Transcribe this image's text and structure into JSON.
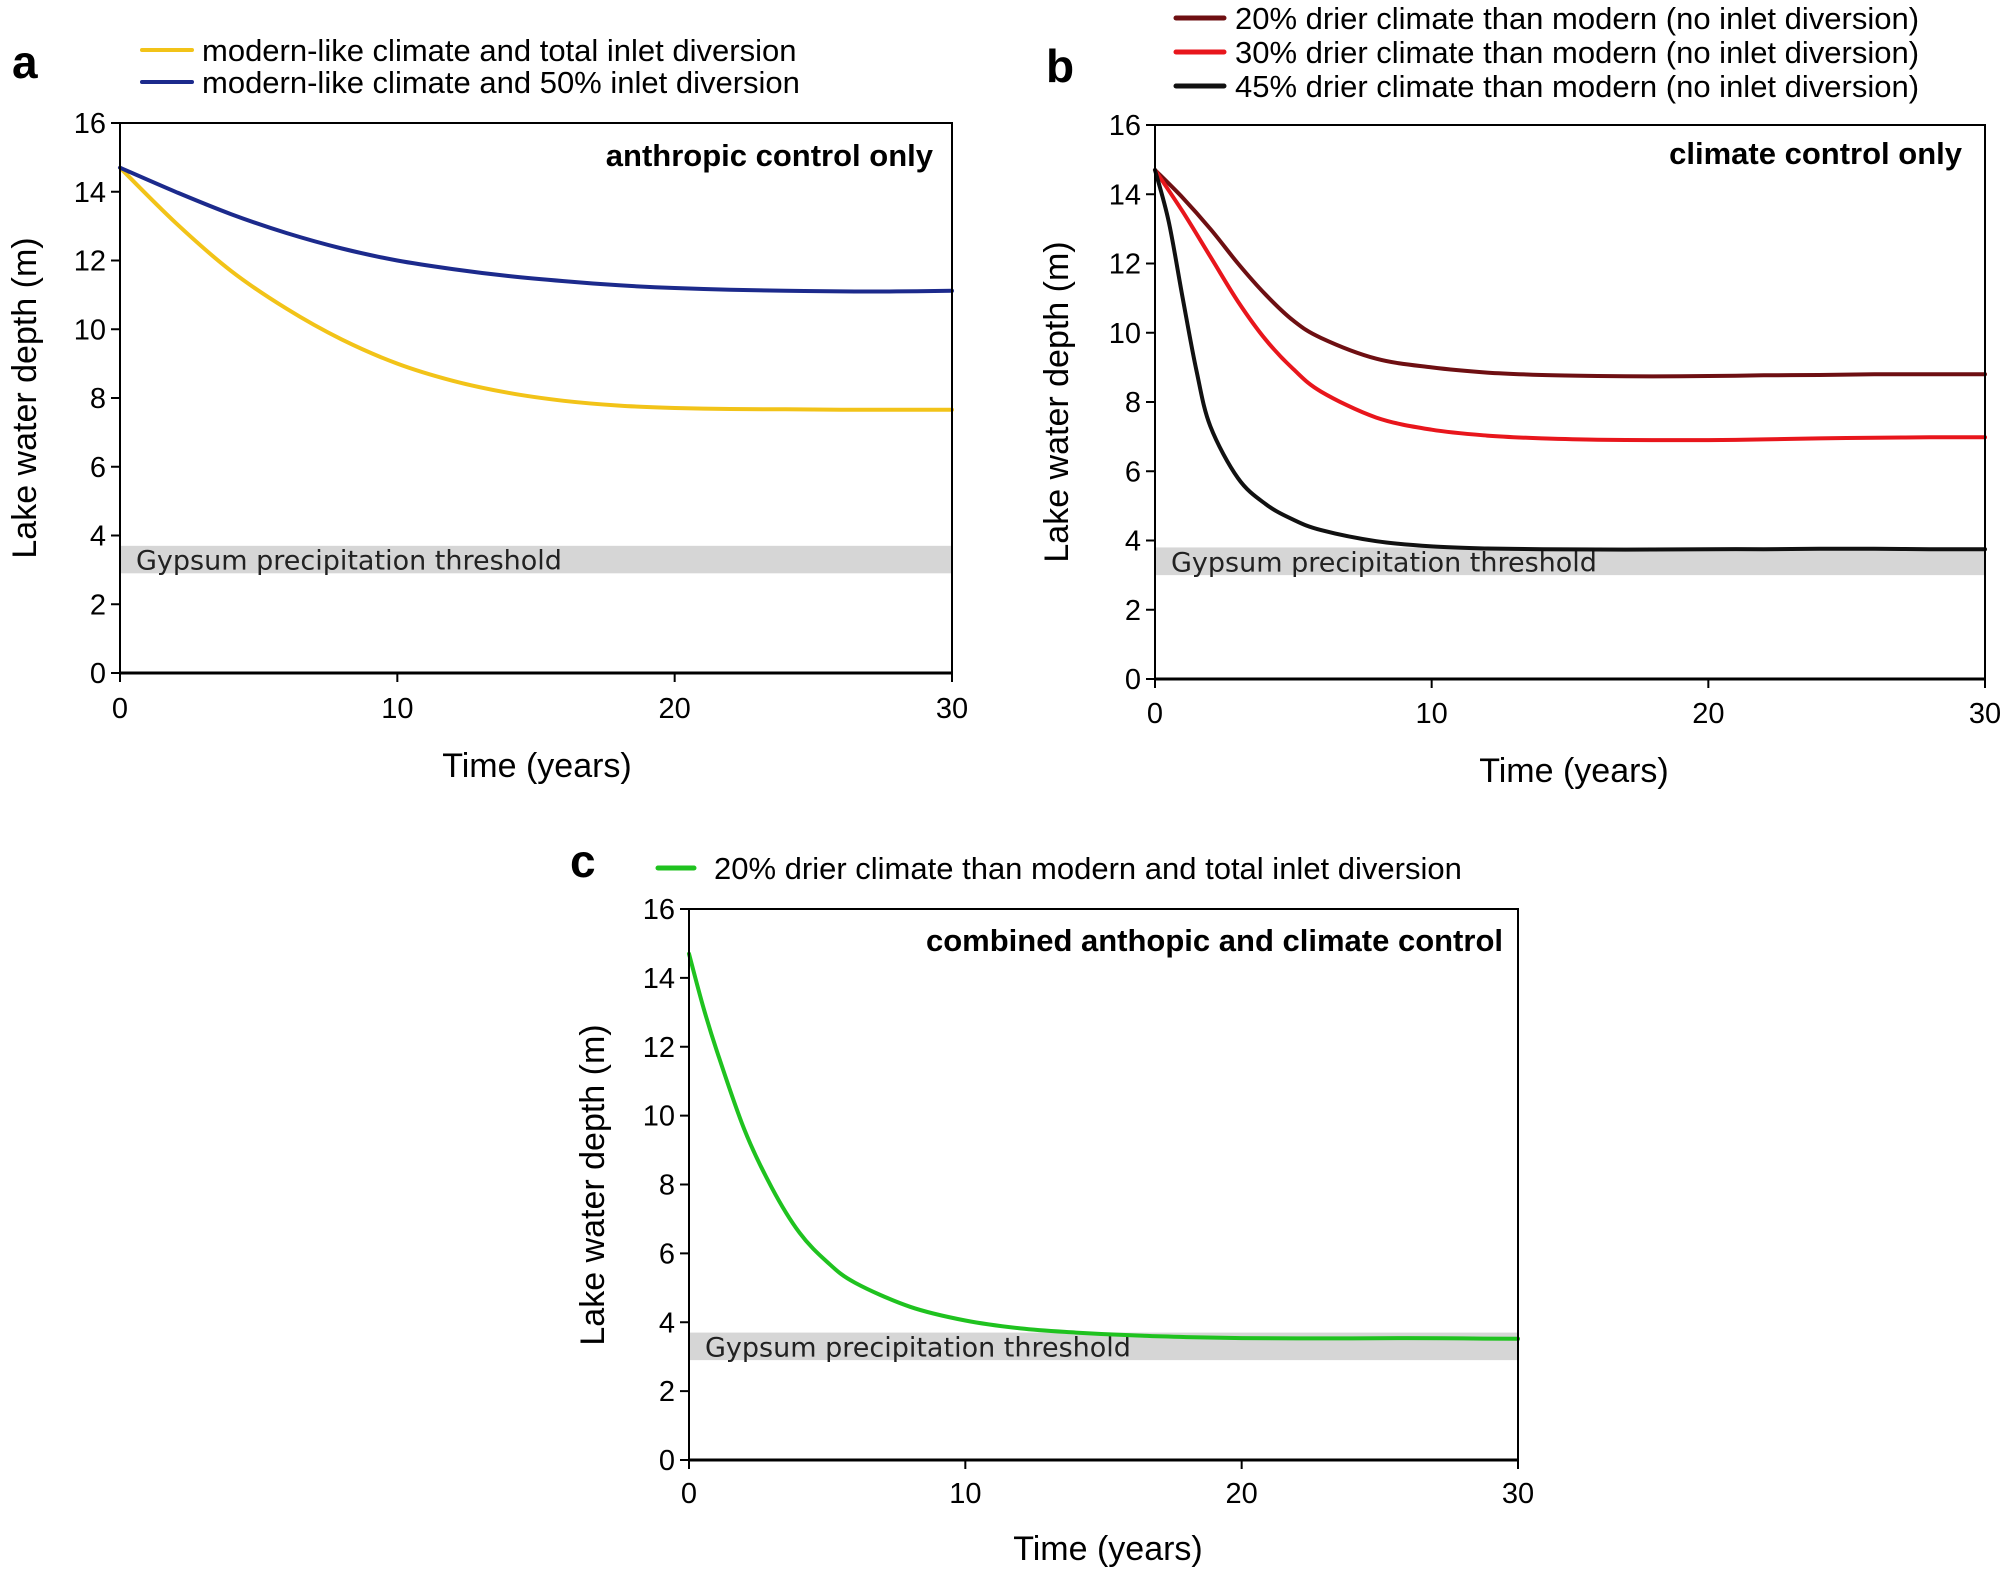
{
  "figure": {
    "colors": {
      "threshold_band": "#d6d6d6",
      "axis": "#000000"
    }
  },
  "chart_data": [
    {
      "panel": "a",
      "type": "line",
      "title": "anthropic control only",
      "xlabel": "Time (years)",
      "ylabel": "Lake water depth (m)",
      "xlim": [
        0,
        30
      ],
      "ylim": [
        0,
        16
      ],
      "xticks": [
        0,
        10,
        20,
        30
      ],
      "yticks": [
        0,
        2,
        4,
        6,
        8,
        10,
        12,
        14,
        16
      ],
      "legend_position": "top-left",
      "threshold": {
        "label": "Gypsum precipitation threshold",
        "range": [
          2.9,
          3.7
        ]
      },
      "series": [
        {
          "name": "modern-like climate and total inlet diversion",
          "color": "#f2c318",
          "x": [
            0,
            2,
            4,
            6,
            8,
            10,
            12,
            14,
            16,
            18,
            20,
            22,
            24,
            26,
            28,
            30
          ],
          "y": [
            14.7,
            13.1,
            11.7,
            10.6,
            9.7,
            9.0,
            8.5,
            8.15,
            7.92,
            7.78,
            7.71,
            7.68,
            7.67,
            7.66,
            7.66,
            7.66
          ]
        },
        {
          "name": "modern-like climate and 50% inlet diversion",
          "color": "#1c2a8c",
          "x": [
            0,
            2,
            4,
            6,
            8,
            10,
            12,
            14,
            16,
            18,
            20,
            22,
            24,
            26,
            28,
            30
          ],
          "y": [
            14.7,
            14.0,
            13.35,
            12.8,
            12.35,
            12.0,
            11.75,
            11.55,
            11.4,
            11.28,
            11.2,
            11.15,
            11.12,
            11.1,
            11.1,
            11.12
          ]
        }
      ]
    },
    {
      "panel": "b",
      "type": "line",
      "title": "climate control only",
      "xlabel": "Time (years)",
      "ylabel": "Lake water depth (m)",
      "xlim": [
        0,
        30
      ],
      "ylim": [
        0,
        16
      ],
      "xticks": [
        0,
        10,
        20,
        30
      ],
      "yticks": [
        0,
        2,
        4,
        6,
        8,
        10,
        12,
        14,
        16
      ],
      "legend_position": "top",
      "threshold": {
        "label": "Gypsum precipitation threshold",
        "range": [
          3.0,
          3.8
        ]
      },
      "series": [
        {
          "name": "20% drier climate than modern (no inlet diversion)",
          "color": "#6e0f12",
          "x": [
            0,
            1,
            2,
            3,
            4,
            5,
            6,
            8,
            10,
            12,
            14,
            16,
            18,
            20,
            22,
            24,
            26,
            28,
            30
          ],
          "y": [
            14.7,
            13.9,
            13.0,
            12.0,
            11.1,
            10.35,
            9.85,
            9.25,
            9.0,
            8.85,
            8.78,
            8.75,
            8.74,
            8.75,
            8.77,
            8.78,
            8.8,
            8.8,
            8.8
          ]
        },
        {
          "name": "30% drier climate than modern (no inlet diversion)",
          "color": "#e8161c",
          "x": [
            0,
            1,
            2,
            3,
            4,
            5,
            6,
            8,
            10,
            12,
            14,
            16,
            18,
            20,
            22,
            24,
            26,
            28,
            30
          ],
          "y": [
            14.7,
            13.5,
            12.2,
            10.9,
            9.8,
            8.95,
            8.3,
            7.55,
            7.2,
            7.03,
            6.95,
            6.91,
            6.9,
            6.9,
            6.92,
            6.95,
            6.97,
            6.98,
            6.98
          ]
        },
        {
          "name": "45% drier climate than modern (no inlet diversion)",
          "color": "#111111",
          "x": [
            0,
            0.5,
            1,
            1.5,
            2,
            3,
            4,
            5,
            6,
            8,
            10,
            12,
            14,
            16,
            18,
            20,
            22,
            24,
            26,
            28,
            30
          ],
          "y": [
            14.7,
            13.2,
            11.0,
            8.9,
            7.3,
            5.8,
            5.05,
            4.6,
            4.3,
            3.98,
            3.83,
            3.77,
            3.75,
            3.74,
            3.74,
            3.75,
            3.75,
            3.76,
            3.76,
            3.75,
            3.75
          ]
        }
      ]
    },
    {
      "panel": "c",
      "type": "line",
      "title": "combined anthopic and climate control",
      "xlabel": "Time (years)",
      "ylabel": "Lake water depth (m)",
      "xlim": [
        0,
        30
      ],
      "ylim": [
        0,
        16
      ],
      "xticks": [
        0,
        10,
        20,
        30
      ],
      "yticks": [
        0,
        2,
        4,
        6,
        8,
        10,
        12,
        14,
        16
      ],
      "legend_position": "top-left",
      "threshold": {
        "label": "Gypsum precipitation threshold",
        "range": [
          2.9,
          3.7
        ]
      },
      "series": [
        {
          "name": "20% drier climate than modern and total inlet diversion",
          "color": "#1fc21f",
          "x": [
            0,
            0.5,
            1,
            2,
            3,
            4,
            5,
            6,
            8,
            10,
            12,
            14,
            16,
            18,
            20,
            22,
            24,
            26,
            28,
            30
          ],
          "y": [
            14.7,
            13.2,
            11.9,
            9.6,
            7.9,
            6.6,
            5.75,
            5.15,
            4.45,
            4.05,
            3.82,
            3.7,
            3.62,
            3.57,
            3.54,
            3.53,
            3.53,
            3.54,
            3.53,
            3.52
          ]
        }
      ]
    }
  ]
}
